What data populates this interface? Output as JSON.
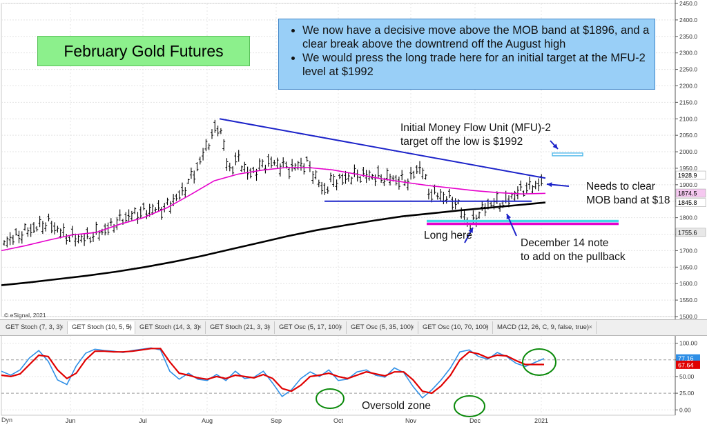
{
  "title": "February Gold Futures",
  "notes": [
    "We now have a decisive move above the MOB band at $1896, and a clear break above the downtrend off the August high",
    "We would press the long trade here for an initial target at the MFU-2 level at $1992"
  ],
  "annotations": {
    "mfu": "Initial Money Flow Unit (MFU)-2\ntarget off the low is $1992",
    "mob": "Needs to clear\nMOB band at $18",
    "long": "Long here",
    "dec": "December 14 note\nto add on the pullback",
    "oversold": "Oversold zone",
    "credit": "© eSignal, 2021"
  },
  "tabs": [
    "GET Stoch (7, 3, 3)",
    "GET Stoch (10, 5, 5)",
    "GET Stoch (14, 3, 3)",
    "GET Stoch (21, 3, 3)",
    "GET Osc (5, 17, 100)",
    "GET Osc (5, 35, 100)",
    "GET Osc (10, 70, 100)",
    "MACD (12, 26, C, 9, false, true)"
  ],
  "bottom_left_label": "Dyn",
  "chart_data": [
    {
      "type": "ohlc",
      "title": "February Gold Futures",
      "x_labels": [
        "Jun",
        "Jul",
        "Aug",
        "Sep",
        "Oct",
        "Nov",
        "Dec",
        "2021"
      ],
      "y_ticks": [
        1500,
        1550,
        1600,
        1650,
        1700,
        1750,
        1800,
        1850,
        1900,
        1950,
        2000,
        2050,
        2100,
        2150,
        2200,
        2250,
        2300,
        2350,
        2400,
        2450
      ],
      "y_tick_labels": [
        "1500.0",
        "1550.0",
        "1600.0",
        "1650.0",
        "1700.0",
        "1750.0",
        "1800.0",
        "1850.0",
        "1900.0",
        "1950.0",
        "2000.0",
        "2050.0",
        "2100.0",
        "2150.0",
        "2200.0",
        "2250.0",
        "2300.0",
        "2350.0",
        "2400.0",
        "2450.0"
      ],
      "ylim": [
        1500,
        2450
      ],
      "price_labels": [
        {
          "value": 1928.9,
          "text": "1928.9",
          "color": "#ffffff"
        },
        {
          "value": 1874.5,
          "text": "1874.5",
          "color": "#f5c8f0"
        },
        {
          "value": 1845.8,
          "text": "1845.8",
          "color": "#ffffff"
        },
        {
          "value": 1755.6,
          "text": "1755.6",
          "color": "#e8e8e8"
        }
      ],
      "series": [
        {
          "name": "",
          "color": "#e600cc",
          "values": [
            1700,
            1715,
            1732,
            1748,
            1755,
            1780,
            1800,
            1830,
            1870,
            1912,
            1932,
            1944,
            1952,
            1952,
            1945,
            1932,
            1919,
            1908,
            1898,
            1890,
            1882,
            1876,
            1872,
            1874
          ]
        },
        {
          "name": "",
          "color": "#000000",
          "values": [
            1595,
            1604,
            1614,
            1624,
            1636,
            1650,
            1666,
            1684,
            1704,
            1724,
            1744,
            1762,
            1777,
            1791,
            1804,
            1813,
            1822,
            1830,
            1838,
            1846
          ]
        }
      ],
      "levels": [
        {
          "value": 1992,
          "color": "#4fb8ea"
        },
        {
          "value": 1785,
          "color": "#e600cc"
        },
        {
          "value": 1850,
          "color": "#1c23c9"
        }
      ],
      "trendline": {
        "from": 2100,
        "to": 1920,
        "color": "#1c23c9"
      }
    },
    {
      "type": "line",
      "x_labels": [
        "Jun",
        "Jul",
        "Aug",
        "Sep",
        "Oct",
        "Nov",
        "Dec",
        "2021"
      ],
      "y_ticks": [
        0,
        25,
        50,
        75,
        100
      ],
      "y_tick_labels": [
        "0.00",
        "25.00",
        "50.00",
        "75.00",
        "100.00"
      ],
      "ylim": [
        -8,
        112
      ],
      "current": [
        {
          "value": 77.16,
          "text": "77.16",
          "color": "#2f8fe6"
        },
        {
          "value": 67.64,
          "text": "67.64",
          "color": "#e00000"
        }
      ],
      "series": [
        {
          "name": "",
          "color": "#2f8fe6",
          "values": [
            58,
            52,
            60,
            78,
            89,
            73,
            45,
            38,
            66,
            85,
            91,
            89,
            88,
            86,
            89,
            91,
            93,
            90,
            58,
            46,
            55,
            46,
            44,
            53,
            44,
            58,
            47,
            49,
            58,
            40,
            20,
            30,
            47,
            57,
            50,
            60,
            44,
            46,
            57,
            60,
            52,
            49,
            63,
            56,
            35,
            18,
            30,
            45,
            63,
            87,
            90,
            80,
            76,
            86,
            80,
            70,
            65,
            71,
            77
          ]
        },
        {
          "name": "",
          "color": "#e00000",
          "values": [
            52,
            50,
            54,
            68,
            82,
            80,
            60,
            47,
            55,
            75,
            88,
            88,
            87,
            87,
            88,
            90,
            92,
            92,
            72,
            55,
            52,
            48,
            46,
            50,
            47,
            52,
            50,
            48,
            53,
            47,
            32,
            28,
            37,
            50,
            52,
            55,
            50,
            47,
            52,
            57,
            54,
            51,
            57,
            57,
            45,
            28,
            25,
            36,
            52,
            75,
            87,
            84,
            78,
            82,
            81,
            74,
            68,
            68,
            68
          ]
        }
      ]
    }
  ]
}
